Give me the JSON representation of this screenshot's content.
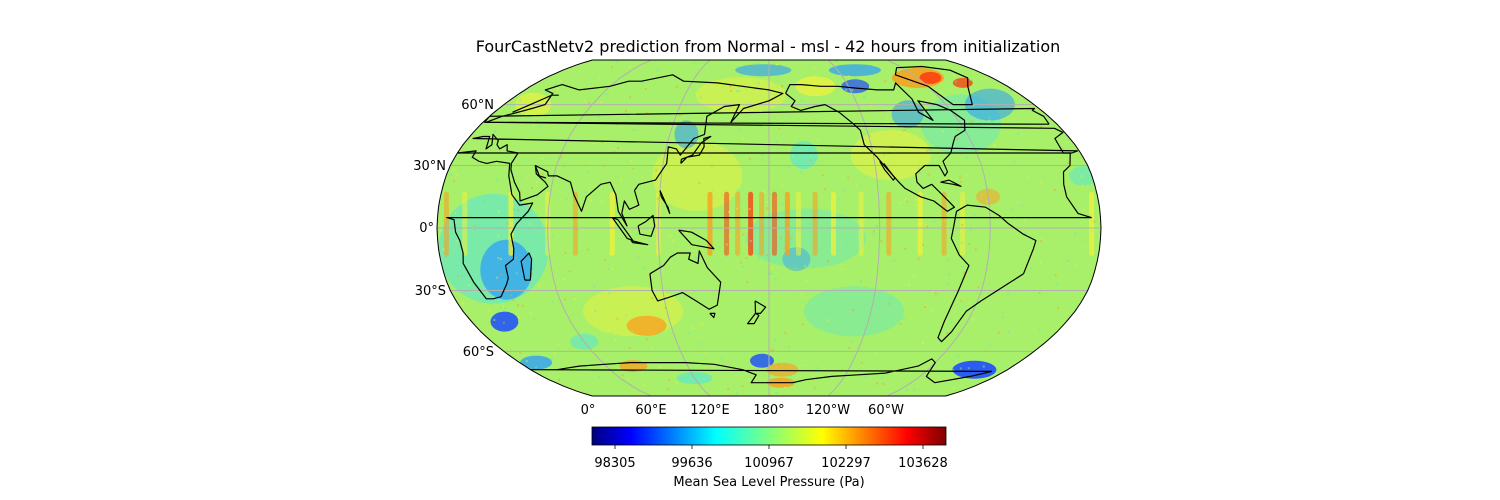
{
  "figure": {
    "title": "FourCastNetv2 prediction from Normal - msl - 42 hours from initialization"
  },
  "map": {
    "projection": "Robinson",
    "central_longitude": 180,
    "field": "msl",
    "lat_labels": [
      "60°N",
      "30°N",
      "0°",
      "30°S",
      "60°S"
    ],
    "lon_labels": [
      "0°",
      "60°E",
      "120°E",
      "180°",
      "120°W",
      "60°W"
    ],
    "gridline_color": "#b0b0b0",
    "coastline_color": "#000000"
  },
  "colorbar": {
    "label": "Mean Sea Level Pressure (Pa)",
    "colormap": "jet",
    "ticks": [
      "98305",
      "99636",
      "100967",
      "102297",
      "103628"
    ],
    "colors": [
      "#00007f",
      "#0000ff",
      "#007fff",
      "#00ffff",
      "#7fff7f",
      "#ffff00",
      "#ff7f00",
      "#ff0000",
      "#7f0000"
    ]
  }
}
